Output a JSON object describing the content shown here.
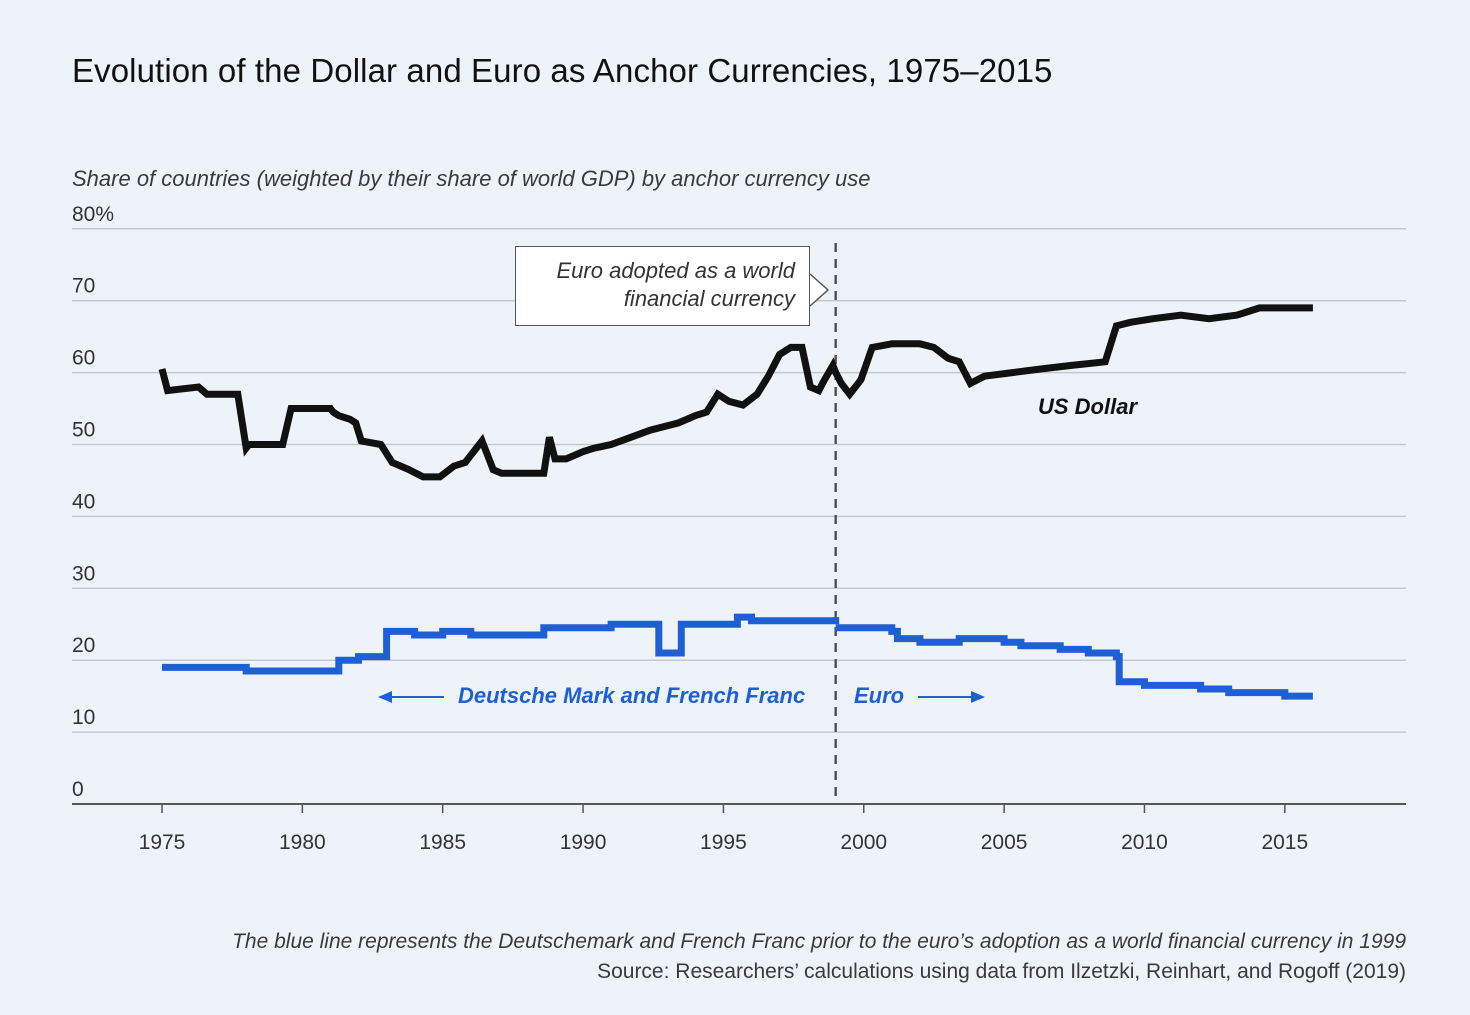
{
  "title": "Evolution of the Dollar and Euro as Anchor Currencies, 1975–2015",
  "colors": {
    "background": "#eef3fa",
    "usd": "#111111",
    "euro": "#1f5fd6",
    "grid": "#c4c8ce"
  },
  "chart_data": {
    "type": "line",
    "ylabel": "Share of countries (weighted by their share of world GDP) by anchor currency use",
    "ylim": [
      0,
      80
    ],
    "xlim": [
      1972,
      2019
    ],
    "y_ticks": [
      "0",
      "10",
      "20",
      "30",
      "40",
      "50",
      "60",
      "70",
      "80%"
    ],
    "y_tick_values": [
      0,
      10,
      20,
      30,
      40,
      50,
      60,
      70,
      80
    ],
    "x_ticks": [
      "1975",
      "1980",
      "1985",
      "1990",
      "1995",
      "2000",
      "2005",
      "2010",
      "2015"
    ],
    "x_tick_values": [
      1975,
      1980,
      1985,
      1990,
      1995,
      2000,
      2005,
      2010,
      2015
    ],
    "grid": "horizontal",
    "series": [
      {
        "name": "US Dollar",
        "color": "#111111",
        "x": [
          1975.0,
          1975.2,
          1976.3,
          1976.6,
          1977.0,
          1977.7,
          1978.0,
          1978.1,
          1979.3,
          1979.6,
          1980.5,
          1981.0,
          1981.1,
          1981.3,
          1981.7,
          1981.9,
          1982.1,
          1982.8,
          1983.2,
          1983.8,
          1984.3,
          1984.9,
          1985.4,
          1985.8,
          1986.4,
          1986.8,
          1987.1,
          1987.8,
          1988.6,
          1988.8,
          1989.0,
          1989.4,
          1990.0,
          1990.4,
          1991.0,
          1991.7,
          1992.4,
          1993.4,
          1994.0,
          1994.4,
          1994.8,
          1995.2,
          1995.7,
          1996.2,
          1996.6,
          1997.0,
          1997.4,
          1997.8,
          1998.1,
          1998.4,
          1998.6,
          1998.9,
          1999.0,
          1999.2,
          1999.5,
          1999.9,
          2000.3,
          2001.0,
          2002.0,
          2002.5,
          2003.0,
          2003.4,
          2003.8,
          2004.3,
          2005.3,
          2006.3,
          2007.4,
          2008.6,
          2009.0,
          2009.5,
          2010.3,
          2011.3,
          2012.3,
          2013.3,
          2013.7,
          2014.1,
          2015.0,
          2016.0
        ],
        "values": [
          60.5,
          57.5,
          58.0,
          57.0,
          57.0,
          57.0,
          49.5,
          50.0,
          50.0,
          55.0,
          55.0,
          55.0,
          54.5,
          54.0,
          53.5,
          53.0,
          50.5,
          50.0,
          47.5,
          46.5,
          45.5,
          45.5,
          47.0,
          47.5,
          50.5,
          46.5,
          46.0,
          46.0,
          46.0,
          51.0,
          48.0,
          48.0,
          49.0,
          49.5,
          50.0,
          51.0,
          52.0,
          53.0,
          54.0,
          54.5,
          57.0,
          56.0,
          55.5,
          57.0,
          59.5,
          62.5,
          63.5,
          63.5,
          58.0,
          57.5,
          59.0,
          61.0,
          60.0,
          58.5,
          57.0,
          59.0,
          63.5,
          64.0,
          64.0,
          63.5,
          62.0,
          61.5,
          58.5,
          59.5,
          60.0,
          60.5,
          61.0,
          61.5,
          66.5,
          67.0,
          67.5,
          68.0,
          67.5,
          68.0,
          68.5,
          69.0,
          69.0,
          69.0
        ]
      },
      {
        "name": "Deutsche Mark and French Franc",
        "color": "#1f5fd6",
        "x": [
          1975.0,
          1976.0,
          1977.0,
          1978.0,
          1979.0,
          1980.0,
          1980.5,
          1981.0,
          1981.3,
          1981.8,
          1982.0,
          1982.9,
          1983.0,
          1984.0,
          1985.0,
          1986.0,
          1987.0,
          1988.0,
          1988.6,
          1989.0,
          1990.0,
          1991.0,
          1992.0,
          1992.7,
          1993.3,
          1993.5,
          1994.0,
          1995.0,
          1995.5,
          1996.0,
          1997.0,
          1998.0,
          1999.0
        ],
        "values": [
          19.0,
          19.0,
          19.0,
          18.5,
          18.5,
          18.5,
          18.5,
          18.5,
          20.0,
          20.0,
          20.5,
          20.5,
          24.0,
          23.5,
          24.0,
          23.5,
          23.5,
          23.5,
          24.5,
          24.5,
          24.5,
          25.0,
          25.0,
          21.0,
          21.0,
          25.0,
          25.0,
          25.0,
          26.0,
          25.5,
          25.5,
          25.5,
          26.0
        ]
      },
      {
        "name": "Euro",
        "color": "#1f5fd6",
        "x": [
          1999.0,
          2000.0,
          2001.0,
          2001.2,
          2002.0,
          2003.0,
          2003.4,
          2004.0,
          2005.0,
          2005.6,
          2006.0,
          2007.0,
          2008.0,
          2009.0,
          2009.1,
          2010.0,
          2011.0,
          2012.0,
          2013.0,
          2014.0,
          2015.0,
          2016.0
        ],
        "values": [
          24.5,
          24.5,
          24.0,
          23.0,
          22.5,
          22.5,
          23.0,
          23.0,
          22.5,
          22.0,
          22.0,
          21.5,
          21.0,
          20.5,
          17.0,
          16.5,
          16.5,
          16.0,
          15.5,
          15.5,
          15.0,
          15.0
        ]
      }
    ],
    "vline": {
      "x": 1999.0
    },
    "annotations": {
      "callout_line1": "Euro adopted as a world",
      "callout_line2": "financial currency",
      "usd_label": "US Dollar",
      "dm_label": "Deutsche Mark and French Franc",
      "euro_label": "Euro"
    }
  },
  "footer": {
    "note": "The blue line represents the Deutschemark and French Franc prior to the euro’s adoption as a world financial currency in 1999",
    "source": "Source: Researchers’ calculations using data from Ilzetzki, Reinhart, and Rogoff (2019)"
  }
}
